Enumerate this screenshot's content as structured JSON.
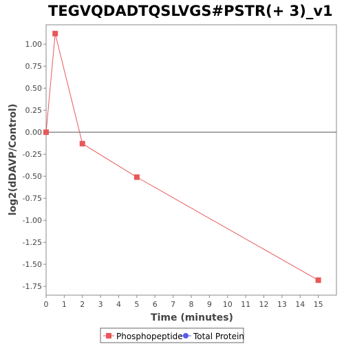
{
  "chart_data": {
    "type": "line",
    "title": "TEGVQDADTQSLVGS#PSTR(+ 3)_v1",
    "xlabel": "Time (minutes)",
    "ylabel": "log2(dDAVP/Control)",
    "xlim": [
      0,
      16
    ],
    "ylim": [
      -1.85,
      1.22
    ],
    "x_ticks": [
      0,
      1,
      2,
      3,
      4,
      5,
      6,
      7,
      8,
      9,
      10,
      11,
      12,
      13,
      14,
      15
    ],
    "y_ticks": [
      -1.75,
      -1.5,
      -1.25,
      -1.0,
      -0.75,
      -0.5,
      -0.25,
      0.0,
      0.25,
      0.5,
      0.75,
      1.0
    ],
    "y_tick_labels": [
      "-1.75",
      "-1.50",
      "-1.25",
      "-1.00",
      "-0.75",
      "-0.50",
      "-0.25",
      "0.00",
      "0.25",
      "0.50",
      "0.75",
      "1.00"
    ],
    "grid": false,
    "zero_line": true,
    "legend_position": "bottom",
    "series": [
      {
        "name": "Phosphopeptide",
        "color": "#e8585a",
        "marker": "square",
        "x": [
          0,
          0.5,
          2,
          5,
          15
        ],
        "y": [
          0.0,
          1.12,
          -0.13,
          -0.51,
          -1.68
        ]
      },
      {
        "name": "Total Protein",
        "color": "#5a5ae8",
        "marker": "circle",
        "x": [],
        "y": []
      }
    ]
  }
}
